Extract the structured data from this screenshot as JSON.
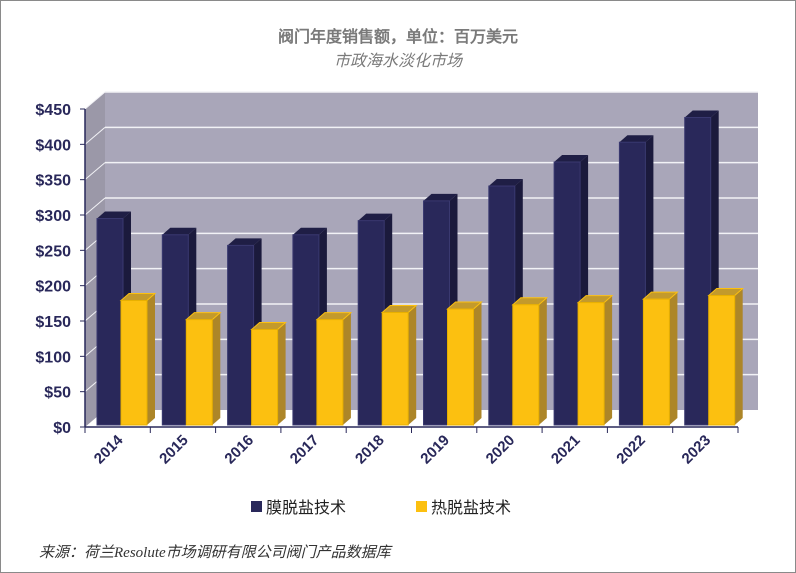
{
  "chart_data": {
    "type": "bar",
    "title": "阀门年度销售额，单位：百万美元",
    "subtitle": "市政海水淡化市场",
    "categories": [
      "2014",
      "2015",
      "2016",
      "2017",
      "2018",
      "2019",
      "2020",
      "2021",
      "2022",
      "2023"
    ],
    "series": [
      {
        "name": "膜脱盐技术",
        "color": "#29285a",
        "values": [
          295,
          272,
          257,
          272,
          292,
          320,
          341,
          375,
          403,
          438
        ]
      },
      {
        "name": "热脱盐技术",
        "color": "#fcc010",
        "values": [
          179,
          152,
          138,
          152,
          162,
          167,
          173,
          176,
          181,
          186
        ]
      }
    ],
    "ylim": [
      0,
      450
    ],
    "yticks": [
      "$0",
      "$50",
      "$100",
      "$150",
      "$200",
      "$250",
      "$300",
      "$350",
      "$400",
      "$450"
    ],
    "grid": true,
    "legend": "bottom",
    "style": "3d-column",
    "background": "#a9a6b9"
  },
  "source": "来源：荷兰Resolute市场调研有限公司阀门产品数据库"
}
